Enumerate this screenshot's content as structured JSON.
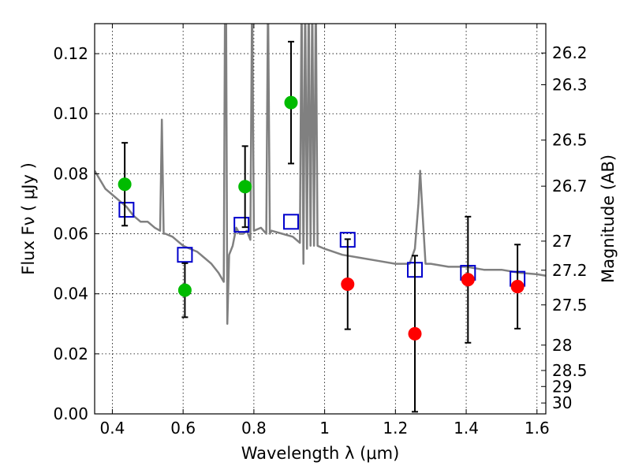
{
  "chart_data": {
    "type": "scatter",
    "xlabel": "Wavelength  λ (μm)",
    "ylabel": "Flux  Fν  ( μJy )",
    "y2label": "Magnitude (AB)",
    "xlim": [
      0.35,
      1.625
    ],
    "ylim": [
      0.0,
      0.13
    ],
    "xticks": [
      0.4,
      0.6,
      0.8,
      1.0,
      1.2,
      1.4,
      1.6
    ],
    "xtick_labels": [
      "0.4",
      "0.6",
      "0.8",
      "1",
      "1.2",
      "1.4",
      "1.6"
    ],
    "yticks": [
      0.0,
      0.02,
      0.04,
      0.06,
      0.08,
      0.1,
      0.12
    ],
    "ytick_labels": [
      "0.00",
      "0.02",
      "0.04",
      "0.06",
      "0.08",
      "0.10",
      "0.12"
    ],
    "mag_ticks": [
      {
        "mag": 26.2,
        "label": "26.2"
      },
      {
        "mag": 26.3,
        "label": "26.3"
      },
      {
        "mag": 26.5,
        "label": "26.5"
      },
      {
        "mag": 26.7,
        "label": "26.7"
      },
      {
        "mag": 27.0,
        "label": "27"
      },
      {
        "mag": 27.2,
        "label": "27.2"
      },
      {
        "mag": 27.5,
        "label": "27.5"
      },
      {
        "mag": 28.0,
        "label": "28"
      },
      {
        "mag": 28.5,
        "label": "28.5"
      },
      {
        "mag": 29.0,
        "label": "29"
      },
      {
        "mag": 30.0,
        "label": "30"
      }
    ],
    "grid": true,
    "series": [
      {
        "kind": "line",
        "color": "#808080",
        "x": [
          0.35,
          0.37,
          0.38,
          0.39,
          0.4,
          0.41,
          0.42,
          0.43,
          0.44,
          0.46,
          0.48,
          0.5,
          0.52,
          0.535,
          0.54,
          0.545,
          0.55,
          0.57,
          0.6,
          0.62,
          0.64,
          0.66,
          0.68,
          0.7,
          0.715,
          0.72,
          0.725,
          0.73,
          0.74,
          0.75,
          0.76,
          0.77,
          0.78,
          0.79,
          0.795,
          0.8,
          0.82,
          0.835,
          0.84,
          0.845,
          0.85,
          0.88,
          0.91,
          0.93,
          0.935,
          0.94,
          0.945,
          0.95,
          0.955,
          0.96,
          0.965,
          0.97,
          0.975,
          0.98,
          1.0,
          1.05,
          1.1,
          1.15,
          1.2,
          1.24,
          1.255,
          1.265,
          1.27,
          1.275,
          1.285,
          1.3,
          1.35,
          1.4,
          1.45,
          1.5,
          1.55,
          1.6,
          1.625
        ],
        "y": [
          0.081,
          0.077,
          0.075,
          0.074,
          0.073,
          0.072,
          0.071,
          0.07,
          0.069,
          0.066,
          0.064,
          0.064,
          0.062,
          0.061,
          0.098,
          0.06,
          0.06,
          0.059,
          0.056,
          0.055,
          0.054,
          0.052,
          0.05,
          0.047,
          0.044,
          0.18,
          0.03,
          0.053,
          0.056,
          0.062,
          0.06,
          0.06,
          0.061,
          0.058,
          0.14,
          0.061,
          0.062,
          0.06,
          0.14,
          0.06,
          0.061,
          0.06,
          0.059,
          0.057,
          0.14,
          0.05,
          0.14,
          0.055,
          0.14,
          0.056,
          0.14,
          0.056,
          0.14,
          0.056,
          0.055,
          0.053,
          0.052,
          0.051,
          0.05,
          0.05,
          0.055,
          0.07,
          0.081,
          0.07,
          0.05,
          0.05,
          0.049,
          0.049,
          0.048,
          0.048,
          0.047,
          0.0465,
          0.046
        ]
      },
      {
        "kind": "points",
        "color": "#00bb00",
        "x": [
          0.435,
          0.605,
          0.775,
          0.905
        ],
        "y": [
          0.0765,
          0.0412,
          0.0757,
          0.1037
        ],
        "yerr": [
          0.0138,
          0.009,
          0.0135,
          0.0203
        ]
      },
      {
        "kind": "points",
        "color": "#ff0000",
        "x": [
          1.065,
          1.255,
          1.405,
          1.545
        ],
        "y": [
          0.0432,
          0.0267,
          0.0447,
          0.0424
        ],
        "yerr": [
          0.015,
          0.026,
          0.021,
          0.014
        ]
      },
      {
        "kind": "squares",
        "color": "#0000cc",
        "x": [
          0.44,
          0.605,
          0.765,
          0.905,
          1.065,
          1.255,
          1.405,
          1.545
        ],
        "y": [
          0.068,
          0.053,
          0.063,
          0.064,
          0.058,
          0.048,
          0.047,
          0.045
        ]
      }
    ]
  }
}
